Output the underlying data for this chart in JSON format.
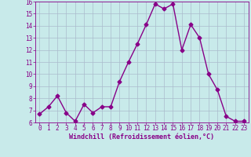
{
  "x": [
    0,
    1,
    2,
    3,
    4,
    5,
    6,
    7,
    8,
    9,
    10,
    11,
    12,
    13,
    14,
    15,
    16,
    17,
    18,
    19,
    20,
    21,
    22,
    23
  ],
  "y": [
    6.7,
    7.3,
    8.2,
    6.8,
    6.1,
    7.5,
    6.8,
    7.3,
    7.3,
    9.4,
    11.0,
    12.5,
    14.1,
    15.8,
    15.4,
    15.8,
    12.0,
    14.1,
    13.0,
    10.0,
    8.7,
    6.5,
    6.1,
    6.1
  ],
  "line_color": "#880088",
  "marker": "D",
  "markersize": 2.5,
  "linewidth": 1.0,
  "bg_color": "#c8eaea",
  "grid_color": "#aabbcc",
  "xlabel": "Windchill (Refroidissement éolien,°C)",
  "xlabel_color": "#880088",
  "tick_color": "#880088",
  "ylim": [
    6,
    16
  ],
  "xlim_min": -0.5,
  "xlim_max": 23.5,
  "yticks": [
    6,
    7,
    8,
    9,
    10,
    11,
    12,
    13,
    14,
    15,
    16
  ],
  "xticks": [
    0,
    1,
    2,
    3,
    4,
    5,
    6,
    7,
    8,
    9,
    10,
    11,
    12,
    13,
    14,
    15,
    16,
    17,
    18,
    19,
    20,
    21,
    22,
    23
  ],
  "tick_fontsize": 5.5,
  "xlabel_fontsize": 6.0,
  "ylabel_fontsize": 5.5
}
